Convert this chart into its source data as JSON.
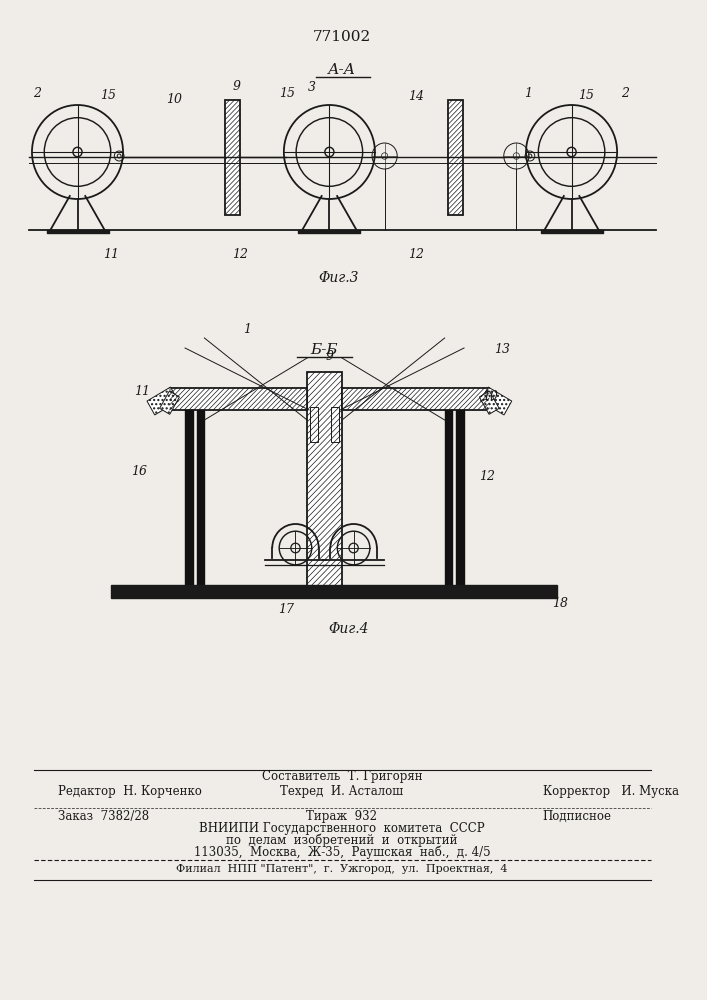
{
  "title": "771002",
  "bg_color": "#f0ede8",
  "line_color": "#1a1a1a",
  "fig3_label": "А-А",
  "fig4_label": "Б-Б",
  "fig3_caption": "Φиг.3",
  "fig4_caption": "Φиг.4",
  "footer_line1": "Составитель  Т. Григорян",
  "footer_line2_left": "Редактор  Н. Корченко",
  "footer_line2_mid": "Техред  И. Асталош",
  "footer_line2_right": "Корректор   И. Муска",
  "footer_line3_left": "Заказ  7382/28",
  "footer_line3_mid": "Тираж  932",
  "footer_line3_right": "Подписное",
  "footer_line4": "ВНИИПИ Государственного  комитета  СССР",
  "footer_line5": "по  делам  изобретений  и  открытий",
  "footer_line6": "113035,  Москва,  Ж-35,  Раушская  наб.,  д. 4/5",
  "footer_line7": "Филиал  НПП \"Патент\",  г.  Ужгород,  ул.  Проектная,  4"
}
